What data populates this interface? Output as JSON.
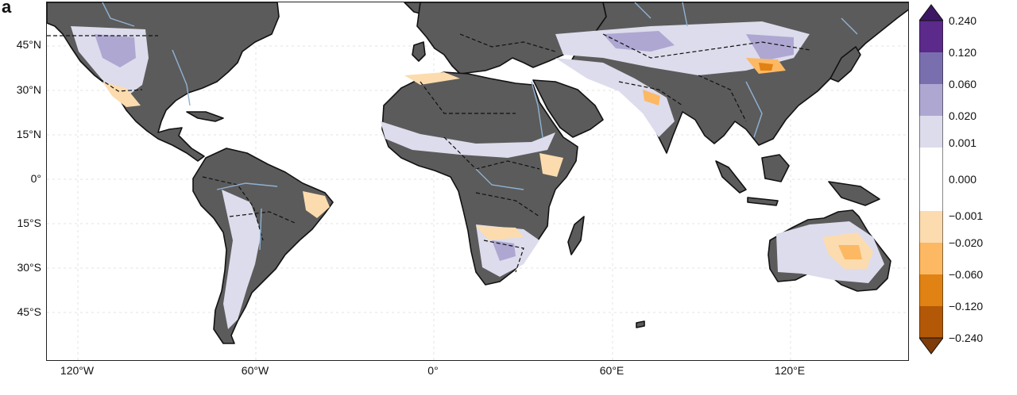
{
  "panel_label": "a",
  "colors": {
    "land": "#5b5b5b",
    "land_edge": "#111111",
    "river": "#8fb2d3",
    "ocean": "#ffffff",
    "grid": "#dddddd"
  },
  "axes": {
    "lat_ticks": [
      "45°N",
      "30°N",
      "15°N",
      "0°",
      "15°S",
      "30°S",
      "45°S"
    ],
    "lon_ticks": [
      "120°W",
      "60°W",
      "0°",
      "60°E",
      "120°E"
    ]
  },
  "colorbar": {
    "ticks": [
      "0.240",
      "0.120",
      "0.060",
      "0.020",
      "0.001",
      "0.000",
      "−0.001",
      "−0.020",
      "−0.060",
      "−0.120",
      "−0.240"
    ],
    "bins": [
      {
        "from": "0.120",
        "to": "0.240",
        "color": "#5b2a8a"
      },
      {
        "from": "0.060",
        "to": "0.120",
        "color": "#7a6fae"
      },
      {
        "from": "0.020",
        "to": "0.060",
        "color": "#aea7d2"
      },
      {
        "from": "0.001",
        "to": "0.020",
        "color": "#dcdcec"
      },
      {
        "from": "0.000",
        "to": "0.001",
        "color": "#ffffff"
      },
      {
        "from": "−0.001",
        "to": "0.000",
        "color": "#ffffff"
      },
      {
        "from": "−0.020",
        "to": "−0.001",
        "color": "#fcdcae"
      },
      {
        "from": "−0.060",
        "to": "−0.020",
        "color": "#fdb863"
      },
      {
        "from": "−0.120",
        "to": "−0.060",
        "color": "#e08214"
      },
      {
        "from": "−0.240",
        "to": "−0.120",
        "color": "#b35806"
      }
    ],
    "over_color": "#3d1766",
    "under_color": "#7f3b08"
  }
}
